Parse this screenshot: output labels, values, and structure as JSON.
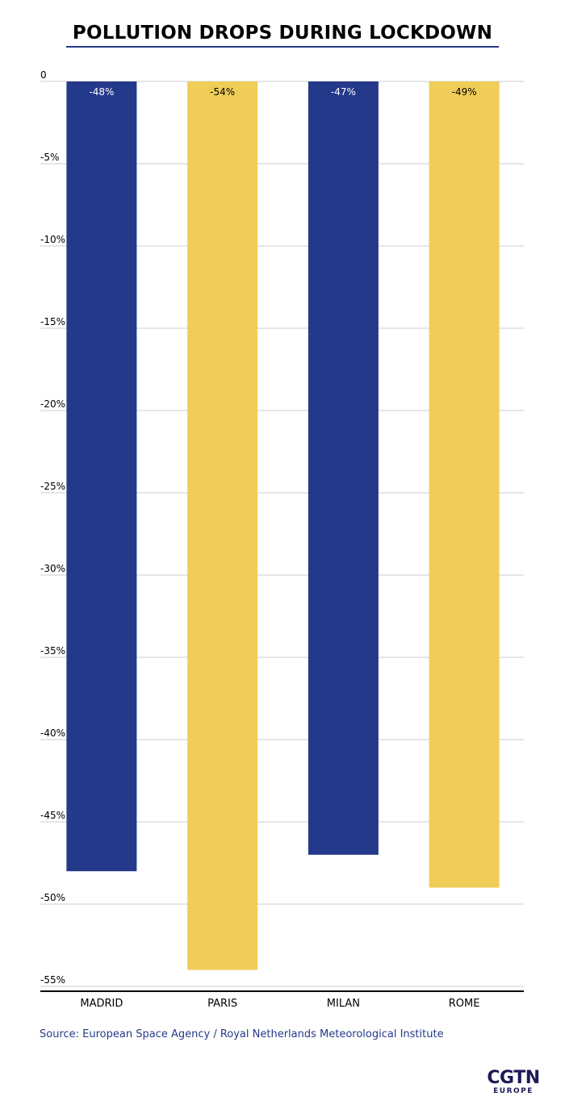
{
  "colors": {
    "navy": "#25398a",
    "yellow": "#f0cd58",
    "grid": "#cccccc",
    "axis": "#000000",
    "source_text": "#25398a",
    "logo": "#1c1a57"
  },
  "chart_data": {
    "type": "bar",
    "title": "POLLUTION DROPS DURING LOCKDOWN",
    "categories": [
      "MADRID",
      "PARIS",
      "MILAN",
      "ROME"
    ],
    "values": [
      -48,
      -54,
      -47,
      -49
    ],
    "data_labels": [
      "-48%",
      "-54%",
      "-47%",
      "-49%"
    ],
    "bar_colors": [
      "#25398a",
      "#f0cd58",
      "#25398a",
      "#f0cd58"
    ],
    "label_colors": [
      "#ffffff",
      "#000000",
      "#ffffff",
      "#000000"
    ],
    "ylim": [
      -55,
      0
    ],
    "yticks": [
      0,
      -5,
      -10,
      -15,
      -20,
      -25,
      -30,
      -35,
      -40,
      -45,
      -50,
      -55
    ],
    "ytick_labels": [
      "0",
      "-5%",
      "-10%",
      "-15%",
      "-20%",
      "-25%",
      "-30%",
      "-35%",
      "-40%",
      "-45%",
      "-50%",
      "-55%"
    ],
    "grid": true,
    "xlabel": "",
    "ylabel": ""
  },
  "source": "Source: European Space Agency / Royal Netherlands Meteorological Institute",
  "logo": {
    "main": "CGTN",
    "sub": "EUROPE"
  }
}
